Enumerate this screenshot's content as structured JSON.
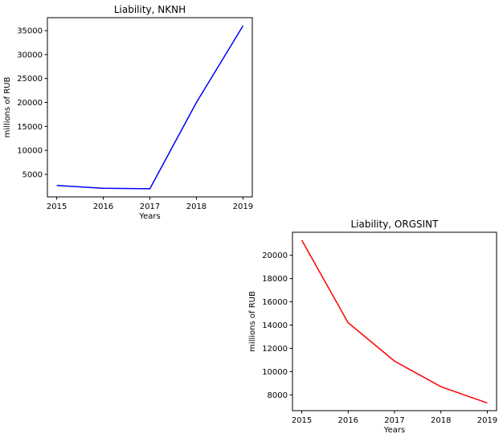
{
  "chart_data": [
    {
      "type": "line",
      "title": "Liability, NKNH",
      "xlabel": "Years",
      "ylabel": "millions of RUB",
      "x": [
        2015,
        2016,
        2017,
        2018,
        2019
      ],
      "x_tick_labels": [
        "2015",
        "2016",
        "2017",
        "2018",
        "2019"
      ],
      "y_ticks": [
        5000,
        10000,
        15000,
        20000,
        25000,
        30000,
        35000
      ],
      "y_tick_labels": [
        "5000",
        "10000",
        "15000",
        "20000",
        "25000",
        "30000",
        "35000"
      ],
      "xlim": [
        2014.8,
        2019.2
      ],
      "ylim": [
        300,
        37700
      ],
      "series": [
        {
          "color": "#0000ff",
          "values": [
            2700,
            2100,
            2000,
            20000,
            36000
          ]
        }
      ],
      "grid": false
    },
    {
      "type": "line",
      "title": "Liability, ORGSINT",
      "xlabel": "Years",
      "ylabel": "millions of RUB",
      "x": [
        2015,
        2016,
        2017,
        2018,
        2019
      ],
      "x_tick_labels": [
        "2015",
        "2016",
        "2017",
        "2018",
        "2019"
      ],
      "y_ticks": [
        8000,
        10000,
        12000,
        14000,
        16000,
        18000,
        20000
      ],
      "y_tick_labels": [
        "8000",
        "10000",
        "12000",
        "14000",
        "16000",
        "18000",
        "20000"
      ],
      "xlim": [
        2014.8,
        2019.2
      ],
      "ylim": [
        6640,
        21980
      ],
      "series": [
        {
          "color": "#ff0000",
          "values": [
            21300,
            14200,
            10900,
            8700,
            7300
          ]
        }
      ],
      "grid": false
    }
  ]
}
